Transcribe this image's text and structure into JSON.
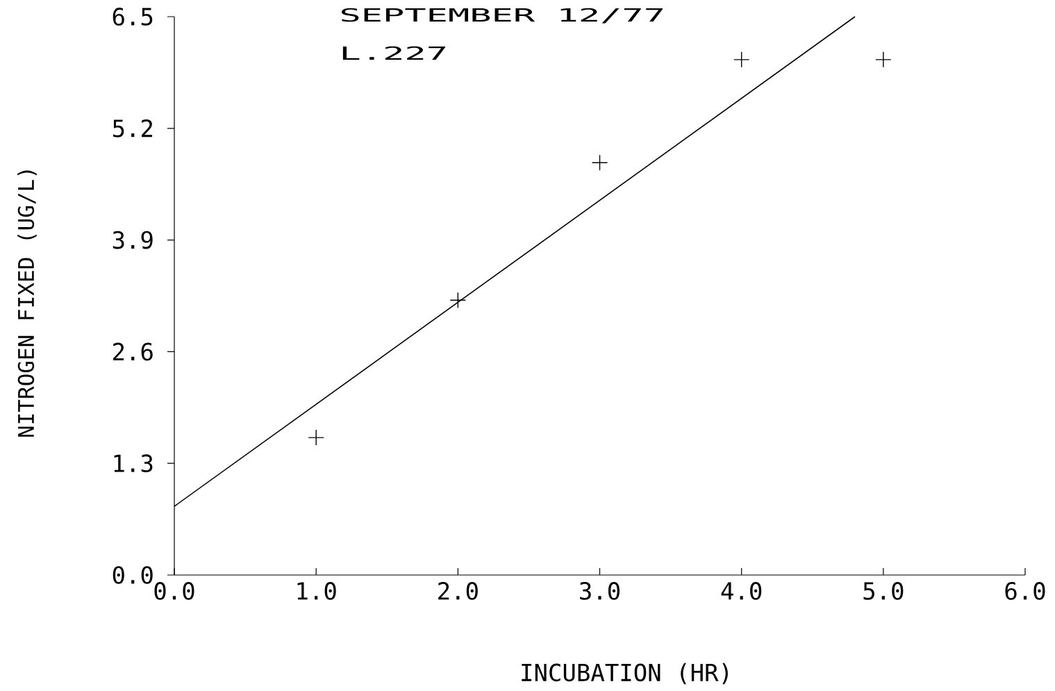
{
  "chart_data": {
    "type": "scatter",
    "title": "SEPTEMBER 12/77",
    "subtitle": "L.227",
    "xlabel": "INCUBATION (HR)",
    "ylabel": "NITROGEN FIXED (UG/L)",
    "xlim": [
      0,
      6
    ],
    "ylim": [
      0,
      6.5
    ],
    "xticks": [
      {
        "value": 0,
        "label": "0.0"
      },
      {
        "value": 1,
        "label": "1.0"
      },
      {
        "value": 2,
        "label": "2.0"
      },
      {
        "value": 3,
        "label": "3.0"
      },
      {
        "value": 4,
        "label": "4.0"
      },
      {
        "value": 5,
        "label": "5.0"
      },
      {
        "value": 6,
        "label": "6.0"
      }
    ],
    "yticks": [
      {
        "value": 0,
        "label": "0.0"
      },
      1.3,
      2.6,
      3.9,
      5.2,
      6.5
    ],
    "marker": "cross",
    "series": [
      {
        "color": "#000000",
        "x": [
          1,
          2,
          3,
          4,
          5
        ],
        "values": [
          1.6,
          3.2,
          4.8,
          6.0,
          6.0
        ]
      },
      {
        "type": "line",
        "color": "#000000",
        "marker": "none",
        "x": [
          0,
          4.8
        ],
        "values": [
          0.8,
          6.5
        ]
      }
    ]
  }
}
